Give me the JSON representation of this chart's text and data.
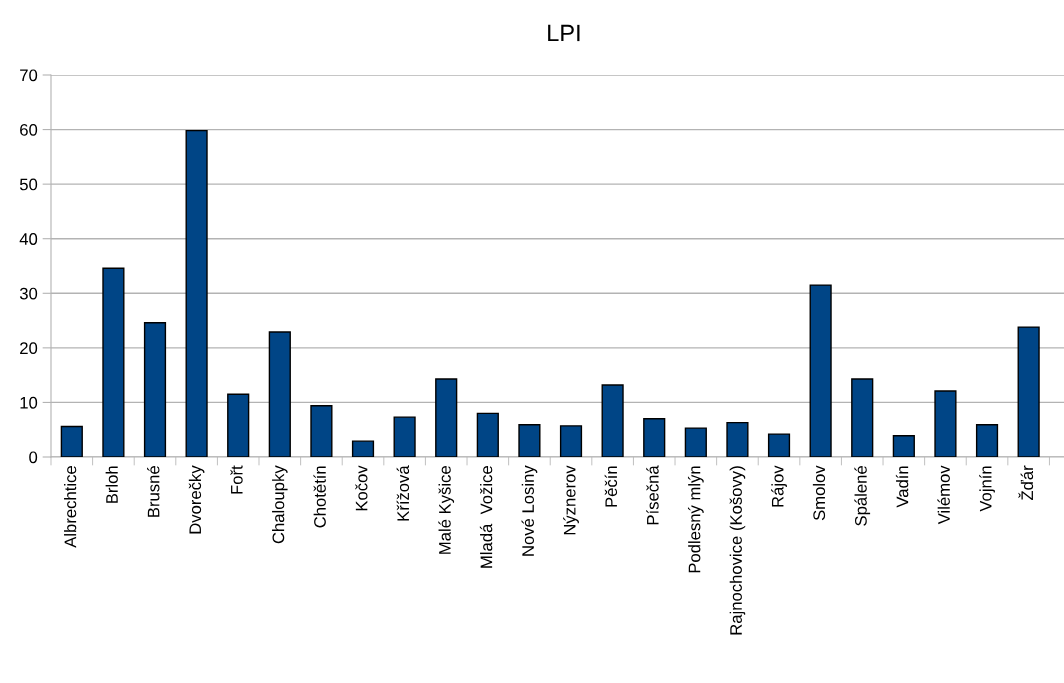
{
  "chart_data": {
    "type": "bar",
    "title": "LPI",
    "categories": [
      "Albrechtice",
      "Brloh",
      "Brusné",
      "Dvorečky",
      "Fořt",
      "Chaloupky",
      "Chotětín",
      "Kočov",
      "Křížová",
      "Malé Kyšice",
      "Mladá  Vožice",
      "Nové Losiny",
      "Nýznerov",
      "Pěčín",
      "Písečná",
      "Podlesný mlýn",
      "Rajnochovice (Košovy)",
      "Rájov",
      "Smolov",
      "Spálené",
      "Vadín",
      "Vilémov",
      "Vojnín",
      "Žďár"
    ],
    "values": [
      5.6,
      34.6,
      24.6,
      59.8,
      11.5,
      22.9,
      9.4,
      2.9,
      7.3,
      14.3,
      8.0,
      5.9,
      5.7,
      13.2,
      7.0,
      5.3,
      6.3,
      4.2,
      31.5,
      14.3,
      3.9,
      12.1,
      5.9,
      23.8
    ],
    "color": "#004586",
    "ylim": [
      0,
      70
    ],
    "yticks": [
      0,
      10,
      20,
      30,
      40,
      50,
      60,
      70
    ],
    "grid": "y"
  }
}
